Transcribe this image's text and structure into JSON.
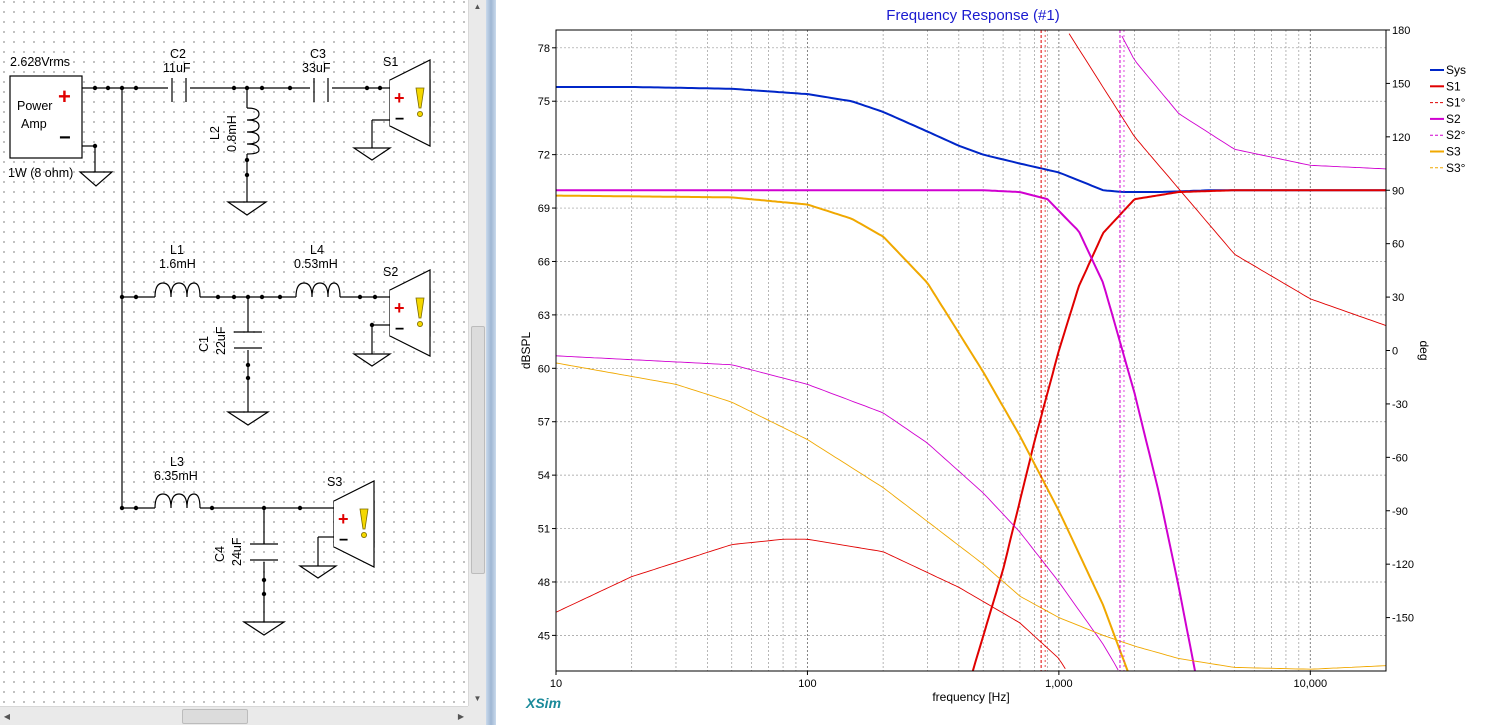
{
  "schematic": {
    "source_voltage": "2.628Vrms",
    "amp_label_line1": "Power",
    "amp_label_line2": "Amp",
    "amp_power": "1W (8 ohm)",
    "components": [
      {
        "id": "C2",
        "name": "C2",
        "value": "11uF"
      },
      {
        "id": "C3",
        "name": "C3",
        "value": "33uF"
      },
      {
        "id": "L2",
        "name": "L2",
        "value": "0.8mH"
      },
      {
        "id": "L1",
        "name": "L1",
        "value": "1.6mH"
      },
      {
        "id": "L4",
        "name": "L4",
        "value": "0.53mH"
      },
      {
        "id": "C1",
        "name": "C1",
        "value": "22uF"
      },
      {
        "id": "L3",
        "name": "L3",
        "value": "6.35mH"
      },
      {
        "id": "C4",
        "name": "C4",
        "value": "24uF"
      }
    ],
    "speakers": [
      "S1",
      "S2",
      "S3"
    ]
  },
  "chart": {
    "brand": "XSim",
    "colors": {
      "Sys": "#0026c8",
      "S1": "#e00000",
      "S2": "#d000d0",
      "S3": "#f0a800"
    }
  },
  "chart_data": {
    "type": "line",
    "title": "Frequency Response (#1)",
    "xlabel": "frequency [Hz]",
    "ylabel": "dBSPL",
    "y2label": "deg",
    "xscale": "log",
    "xlim": [
      10,
      20000
    ],
    "ylim": [
      43,
      79
    ],
    "y2lim": [
      -180,
      180
    ],
    "x_ticks": [
      "10",
      "100",
      "1,000",
      "10,000"
    ],
    "y_ticks": [
      "45",
      "48",
      "51",
      "54",
      "57",
      "60",
      "63",
      "66",
      "69",
      "72",
      "75",
      "78"
    ],
    "y2_ticks": [
      "180",
      "150",
      "120",
      "90",
      "60",
      "30",
      "0",
      "-30",
      "-60",
      "-90",
      "-120",
      "-150"
    ],
    "grid": true,
    "legend_position": "right",
    "series": [
      {
        "name": "Sys",
        "axis": "left",
        "style": "solid",
        "x": [
          10,
          20,
          50,
          100,
          150,
          200,
          300,
          400,
          500,
          700,
          1000,
          1500,
          1800,
          2500,
          4000,
          20000
        ],
        "y": [
          75.8,
          75.8,
          75.7,
          75.4,
          75.0,
          74.4,
          73.3,
          72.5,
          72.0,
          71.5,
          71.0,
          70.0,
          69.9,
          69.9,
          70.0,
          70.0
        ]
      },
      {
        "name": "S1",
        "axis": "left",
        "style": "solid",
        "x": [
          450,
          600,
          800,
          1000,
          1200,
          1500,
          2000,
          3000,
          5000,
          10000,
          20000
        ],
        "y": [
          42.8,
          48.7,
          55.9,
          61.0,
          64.6,
          67.6,
          69.5,
          69.9,
          70.0,
          70.0,
          70.0
        ]
      },
      {
        "name": "S1°",
        "axis": "right",
        "style": "dashed",
        "x": [
          10,
          20,
          50,
          80,
          100,
          200,
          400,
          700,
          1000,
          2000,
          5000,
          10000,
          20000
        ],
        "y": [
          -147,
          -127,
          -109,
          -106,
          -106,
          -113,
          -133,
          -153,
          -173,
          120,
          54,
          29,
          14
        ]
      },
      {
        "name": "S2",
        "axis": "left",
        "style": "solid",
        "x": [
          10,
          100,
          500,
          700,
          900,
          1200,
          1500,
          2000,
          2500,
          3000,
          3500
        ],
        "y": [
          70.0,
          70.0,
          70.0,
          69.9,
          69.5,
          67.7,
          64.8,
          58.6,
          53.0,
          47.7,
          42.8
        ]
      },
      {
        "name": "S2°",
        "axis": "right",
        "style": "dashed",
        "x": [
          10,
          50,
          100,
          200,
          300,
          500,
          700,
          1000,
          1500,
          1700,
          2000,
          3000,
          5000,
          10000,
          20000
        ],
        "y": [
          -3,
          -8,
          -19,
          -35,
          -52,
          -80,
          -102,
          -130,
          -165,
          -178,
          163,
          133,
          113,
          104,
          102
        ]
      },
      {
        "name": "S3",
        "axis": "left",
        "style": "solid",
        "x": [
          10,
          50,
          100,
          150,
          200,
          300,
          500,
          700,
          1000,
          1500,
          1900
        ],
        "y": [
          69.7,
          69.6,
          69.2,
          68.4,
          67.4,
          64.8,
          59.8,
          56.2,
          52.0,
          46.7,
          42.8
        ]
      },
      {
        "name": "S3°",
        "axis": "right",
        "style": "dashed",
        "x": [
          10,
          30,
          50,
          100,
          200,
          300,
          500,
          700,
          1000,
          1500,
          2000,
          3000,
          5000,
          10000,
          20000
        ],
        "y": [
          -7,
          -19,
          -29,
          -50,
          -77,
          -96,
          -120,
          -138,
          -150,
          -160,
          -166,
          -173,
          -178,
          -179,
          -177
        ]
      }
    ],
    "crossover_markers": [
      {
        "name": "S1°",
        "x": 850
      },
      {
        "name": "S2°",
        "x": 1750
      }
    ]
  }
}
